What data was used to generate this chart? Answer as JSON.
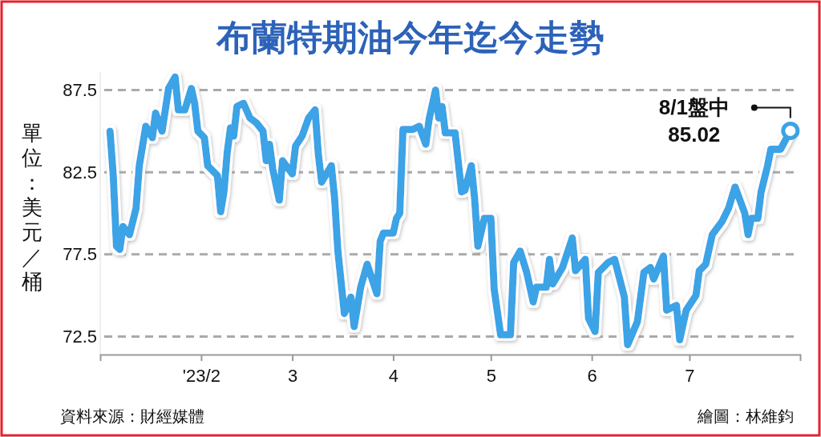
{
  "chart_data": {
    "type": "line",
    "title": "布蘭特期油今年迄今走勢",
    "ylabel": "單位：美元／桶",
    "x": [
      "2023-01-04",
      "2023-01-05",
      "2023-01-06",
      "2023-01-07",
      "2023-01-08",
      "2023-01-10",
      "2023-01-12",
      "2023-01-13",
      "2023-01-15",
      "2023-01-17",
      "2023-01-18",
      "2023-01-20",
      "2023-01-22",
      "2023-01-24",
      "2023-01-25",
      "2023-01-27",
      "2023-01-29",
      "2023-01-30",
      "2023-01-31",
      "2023-02-02",
      "2023-02-03",
      "2023-02-06",
      "2023-02-07",
      "2023-02-08",
      "2023-02-09",
      "2023-02-10",
      "2023-02-11",
      "2023-02-12",
      "2023-02-14",
      "2023-02-16",
      "2023-02-18",
      "2023-02-20",
      "2023-02-21",
      "2023-02-22",
      "2023-02-23",
      "2023-02-25",
      "2023-02-26",
      "2023-03-01",
      "2023-03-02",
      "2023-03-04",
      "2023-03-06",
      "2023-03-08",
      "2023-03-09",
      "2023-03-10",
      "2023-03-13",
      "2023-03-14",
      "2023-03-15",
      "2023-03-17",
      "2023-03-19",
      "2023-03-20",
      "2023-03-22",
      "2023-03-24",
      "2023-03-27",
      "2023-03-28",
      "2023-03-29",
      "2023-04-01",
      "2023-04-02",
      "2023-04-03",
      "2023-04-04",
      "2023-04-07",
      "2023-04-09",
      "2023-04-11",
      "2023-04-12",
      "2023-04-14",
      "2023-04-15",
      "2023-04-16",
      "2023-04-17",
      "2023-04-20",
      "2023-04-21",
      "2023-04-22",
      "2023-04-23",
      "2023-04-25",
      "2023-04-26",
      "2023-04-27",
      "2023-04-29",
      "2023-05-01",
      "2023-05-02",
      "2023-05-04",
      "2023-05-07",
      "2023-05-08",
      "2023-05-10",
      "2023-05-12",
      "2023-05-14",
      "2023-05-15",
      "2023-05-18",
      "2023-05-19",
      "2023-05-20",
      "2023-05-23",
      "2023-05-26",
      "2023-05-27",
      "2023-05-30",
      "2023-05-31",
      "2023-06-02",
      "2023-06-03",
      "2023-06-06",
      "2023-06-08",
      "2023-06-11",
      "2023-06-12",
      "2023-06-15",
      "2023-06-17",
      "2023-06-19",
      "2023-06-20",
      "2023-06-23",
      "2023-06-24",
      "2023-06-27",
      "2023-06-28",
      "2023-06-30",
      "2023-07-03",
      "2023-07-04",
      "2023-07-06",
      "2023-07-08",
      "2023-07-11",
      "2023-07-13",
      "2023-07-15",
      "2023-07-18",
      "2023-07-19",
      "2023-07-20",
      "2023-07-22",
      "2023-07-23",
      "2023-07-25",
      "2023-07-26",
      "2023-07-29",
      "2023-08-01"
    ],
    "series": [
      {
        "color": "#3aa3e6",
        "values": [
          85.0,
          82.3,
          78.0,
          77.8,
          79.2,
          78.7,
          80.3,
          82.9,
          85.3,
          84.6,
          86.1,
          85.0,
          87.6,
          88.3,
          86.3,
          86.3,
          87.6,
          86.7,
          85.0,
          84.6,
          82.9,
          82.3,
          80.1,
          81.3,
          83.7,
          85.2,
          84.7,
          86.5,
          86.7,
          85.8,
          85.5,
          85.0,
          83.2,
          84.2,
          82.7,
          80.8,
          83.2,
          82.4,
          84.1,
          84.7,
          85.8,
          86.3,
          83.6,
          81.9,
          82.9,
          80.9,
          77.7,
          73.9,
          74.9,
          73.1,
          75.5,
          76.9,
          75.1,
          78.3,
          78.8,
          78.8,
          79.7,
          80.0,
          85.1,
          85.1,
          85.3,
          84.2,
          85.7,
          87.5,
          85.8,
          86.5,
          84.9,
          84.9,
          83.1,
          81.3,
          81.4,
          82.9,
          80.9,
          78.0,
          79.7,
          79.7,
          75.4,
          72.6,
          72.6,
          77.0,
          77.7,
          76.4,
          74.6,
          75.5,
          75.5,
          77.2,
          75.7,
          76.7,
          78.5,
          76.5,
          77.2,
          73.6,
          72.8,
          76.4,
          77.0,
          77.2,
          74.9,
          72.0,
          73.4,
          76.4,
          76.7,
          76.0,
          77.4,
          74.1,
          74.4,
          72.3,
          74.1,
          75.0,
          76.5,
          76.9,
          78.7,
          79.5,
          80.3,
          81.6,
          80.0,
          78.7,
          79.7,
          79.7,
          81.3,
          82.9,
          83.9,
          83.9,
          85.02
        ]
      }
    ],
    "xlim": [
      "2023-01-01",
      "2023-08-04"
    ],
    "xticks": [
      {
        "value": "2023-02-01",
        "label": "'23/2"
      },
      {
        "value": "2023-03-01",
        "label": "3"
      },
      {
        "value": "2023-04-01",
        "label": "4"
      },
      {
        "value": "2023-05-01",
        "label": "5"
      },
      {
        "value": "2023-06-01",
        "label": "6"
      },
      {
        "value": "2023-07-01",
        "label": "7"
      }
    ],
    "ylim": [
      71.4,
      88.6
    ],
    "yticks": [
      72.5,
      77.5,
      82.5,
      87.5
    ],
    "grid": "y",
    "marker": "none",
    "line_style": "solid",
    "annotations": [
      {
        "text": "8/1盤中\n85.02",
        "x": "2023-08-01",
        "y": 85.02
      },
      "資料來源：財經媒體",
      "繪圖：林維鈞"
    ]
  }
}
